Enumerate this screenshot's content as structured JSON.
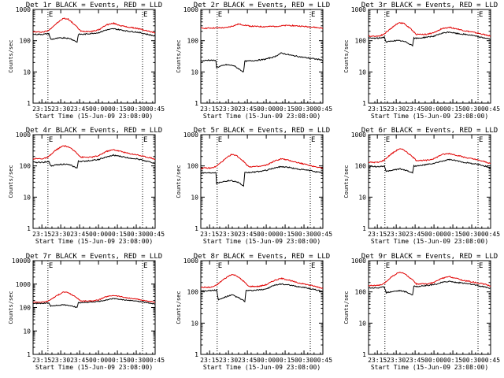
{
  "figure": {
    "xlabel": "Start Time (15-Jun-09 23:08:00)",
    "ylabel": "Counts/sec",
    "x_ticks": [
      "23:15",
      "23:30",
      "23:45",
      "00:00",
      "00:15",
      "00:30",
      "00:45"
    ],
    "y_ticks": [
      "1",
      "10",
      "100",
      "1000",
      "10000"
    ],
    "marker_label": "E",
    "colors": {
      "events": "#000000",
      "lld": "#e00000",
      "axes": "#000000",
      "background": "#ffffff"
    }
  },
  "chart_data": [
    {
      "type": "line",
      "title": "Det 1r BLACK = Events, RED = LLD",
      "ymax": 1000,
      "series": [
        {
          "name": "LLD",
          "color": "#e00000",
          "x": [
            0,
            8,
            12,
            18,
            24,
            28,
            34,
            38,
            46,
            52,
            58,
            64,
            70,
            76,
            82,
            88,
            94,
            97
          ],
          "values": [
            190,
            190,
            210,
            340,
            520,
            490,
            300,
            200,
            200,
            220,
            320,
            360,
            300,
            270,
            250,
            220,
            190,
            180
          ]
        },
        {
          "name": "Events",
          "color": "#000000",
          "x": [
            0,
            8,
            12.5,
            14,
            20,
            25,
            30,
            35,
            36,
            40,
            46,
            52,
            58,
            64,
            70,
            76,
            82,
            88,
            94,
            97
          ],
          "values": [
            160,
            160,
            170,
            110,
            120,
            125,
            115,
            90,
            160,
            160,
            170,
            180,
            220,
            240,
            220,
            200,
            190,
            170,
            150,
            140
          ]
        }
      ],
      "markers": [
        11.8,
        87
      ]
    },
    {
      "type": "line",
      "title": "Det 2r BLACK = Events, RED = LLD",
      "ymax": 1000,
      "series": [
        {
          "name": "LLD",
          "color": "#e00000",
          "x": [
            0,
            10,
            20,
            26,
            30,
            40,
            50,
            60,
            70,
            80,
            90,
            97
          ],
          "values": [
            250,
            255,
            260,
            300,
            340,
            290,
            280,
            290,
            310,
            290,
            270,
            250
          ]
        },
        {
          "name": "Events",
          "color": "#000000",
          "x": [
            0,
            6,
            12,
            12.5,
            20,
            26,
            34,
            35,
            42,
            50,
            58,
            64,
            72,
            80,
            88,
            97
          ],
          "values": [
            22,
            24,
            23,
            14,
            17,
            16,
            10,
            22,
            23,
            25,
            30,
            40,
            34,
            30,
            27,
            24
          ]
        }
      ],
      "markers": [
        13,
        87
      ]
    },
    {
      "type": "line",
      "title": "Det 3r BLACK = Events, RED = LLD",
      "ymax": 1000,
      "series": [
        {
          "name": "LLD",
          "color": "#e00000",
          "x": [
            0,
            8,
            12,
            18,
            24,
            28,
            34,
            38,
            46,
            52,
            58,
            64,
            70,
            76,
            82,
            88,
            94,
            97
          ],
          "values": [
            140,
            140,
            160,
            250,
            380,
            360,
            230,
            160,
            160,
            180,
            240,
            270,
            240,
            210,
            190,
            170,
            150,
            140
          ]
        },
        {
          "name": "Events",
          "color": "#000000",
          "x": [
            0,
            8,
            12.5,
            14,
            20,
            25,
            30,
            35,
            36,
            40,
            46,
            52,
            58,
            64,
            70,
            76,
            82,
            88,
            94,
            97
          ],
          "values": [
            120,
            120,
            130,
            90,
            100,
            100,
            90,
            70,
            120,
            120,
            130,
            140,
            170,
            190,
            170,
            160,
            150,
            130,
            120,
            110
          ]
        }
      ],
      "markers": [
        13,
        87
      ]
    },
    {
      "type": "line",
      "title": "Det 4r BLACK = Events, RED = LLD",
      "ymax": 1000,
      "series": [
        {
          "name": "LLD",
          "color": "#e00000",
          "x": [
            0,
            8,
            12,
            18,
            24,
            28,
            34,
            38,
            46,
            52,
            58,
            64,
            70,
            76,
            82,
            88,
            94,
            97
          ],
          "values": [
            170,
            170,
            190,
            320,
            440,
            410,
            280,
            190,
            190,
            210,
            290,
            330,
            290,
            250,
            230,
            200,
            180,
            160
          ]
        },
        {
          "name": "Events",
          "color": "#000000",
          "x": [
            0,
            8,
            12.5,
            14,
            20,
            25,
            30,
            35,
            36,
            40,
            46,
            52,
            58,
            64,
            70,
            76,
            82,
            88,
            94,
            97
          ],
          "values": [
            130,
            130,
            140,
            100,
            110,
            115,
            105,
            85,
            140,
            140,
            150,
            160,
            190,
            220,
            200,
            180,
            170,
            150,
            130,
            120
          ]
        }
      ],
      "markers": [
        11.8,
        87
      ]
    },
    {
      "type": "line",
      "title": "Det 5r BLACK = Events, RED = LLD",
      "ymax": 1000,
      "series": [
        {
          "name": "LLD",
          "color": "#e00000",
          "x": [
            0,
            8,
            12,
            18,
            24,
            28,
            34,
            38,
            46,
            52,
            58,
            64,
            70,
            76,
            82,
            88,
            94,
            97
          ],
          "values": [
            85,
            85,
            95,
            150,
            230,
            220,
            140,
            95,
            95,
            105,
            140,
            170,
            150,
            130,
            115,
            100,
            90,
            85
          ]
        },
        {
          "name": "Events",
          "color": "#000000",
          "x": [
            0,
            6,
            12,
            12.5,
            18,
            24,
            30,
            34,
            35,
            40,
            46,
            52,
            58,
            64,
            70,
            76,
            82,
            88,
            94,
            97
          ],
          "values": [
            60,
            60,
            62,
            28,
            32,
            34,
            30,
            22,
            60,
            62,
            66,
            72,
            85,
            95,
            90,
            80,
            75,
            70,
            62,
            58
          ]
        }
      ],
      "markers": [
        13,
        87
      ]
    },
    {
      "type": "line",
      "title": "Det 6r BLACK = Events, RED = LLD",
      "ymax": 1000,
      "series": [
        {
          "name": "LLD",
          "color": "#e00000",
          "x": [
            0,
            8,
            12,
            18,
            24,
            28,
            34,
            38,
            46,
            52,
            58,
            64,
            70,
            76,
            82,
            88,
            94,
            97
          ],
          "values": [
            130,
            130,
            150,
            240,
            350,
            330,
            210,
            150,
            150,
            170,
            230,
            250,
            220,
            190,
            170,
            150,
            130,
            120
          ]
        },
        {
          "name": "Events",
          "color": "#000000",
          "x": [
            0,
            8,
            12.5,
            14,
            20,
            25,
            30,
            35,
            36,
            40,
            46,
            52,
            58,
            64,
            70,
            76,
            82,
            88,
            94,
            97
          ],
          "values": [
            95,
            95,
            100,
            65,
            75,
            80,
            72,
            60,
            100,
            100,
            110,
            120,
            140,
            160,
            145,
            130,
            120,
            110,
            95,
            85
          ]
        }
      ],
      "markers": [
        13,
        87
      ]
    },
    {
      "type": "line",
      "title": "Det 7r BLACK = Events, RED = LLD",
      "ymax": 10000,
      "series": [
        {
          "name": "LLD",
          "color": "#e00000",
          "x": [
            0,
            8,
            12,
            18,
            24,
            28,
            34,
            38,
            46,
            52,
            58,
            64,
            70,
            76,
            82,
            88,
            94,
            97
          ],
          "values": [
            170,
            170,
            190,
            300,
            460,
            430,
            280,
            190,
            190,
            210,
            290,
            330,
            290,
            250,
            230,
            200,
            180,
            160
          ]
        },
        {
          "name": "Events",
          "color": "#000000",
          "x": [
            0,
            8,
            12.5,
            14,
            20,
            25,
            30,
            35,
            36,
            40,
            46,
            52,
            58,
            64,
            70,
            76,
            82,
            88,
            94,
            97
          ],
          "values": [
            150,
            150,
            160,
            115,
            125,
            130,
            120,
            100,
            160,
            160,
            170,
            180,
            210,
            240,
            220,
            200,
            190,
            170,
            150,
            140
          ]
        }
      ],
      "markers": [
        11.8,
        87
      ]
    },
    {
      "type": "line",
      "title": "Det 8r BLACK = Events, RED = LLD",
      "ymax": 1000,
      "series": [
        {
          "name": "LLD",
          "color": "#e00000",
          "x": [
            0,
            8,
            12,
            18,
            24,
            28,
            34,
            38,
            46,
            52,
            58,
            64,
            70,
            76,
            82,
            88,
            94,
            97
          ],
          "values": [
            140,
            140,
            160,
            250,
            360,
            340,
            220,
            150,
            150,
            170,
            230,
            270,
            240,
            200,
            180,
            160,
            140,
            130
          ]
        },
        {
          "name": "Events",
          "color": "#000000",
          "x": [
            0,
            8,
            12.5,
            14,
            20,
            25,
            30,
            35,
            36,
            40,
            46,
            52,
            58,
            64,
            70,
            76,
            82,
            88,
            94,
            97
          ],
          "values": [
            110,
            110,
            115,
            55,
            70,
            80,
            65,
            50,
            110,
            110,
            115,
            125,
            160,
            180,
            165,
            150,
            140,
            125,
            110,
            100
          ]
        }
      ],
      "markers": [
        13,
        87
      ]
    },
    {
      "type": "line",
      "title": "Det 9r BLACK = Events, RED = LLD",
      "ymax": 1000,
      "series": [
        {
          "name": "LLD",
          "color": "#e00000",
          "x": [
            0,
            8,
            12,
            18,
            24,
            28,
            34,
            38,
            46,
            52,
            58,
            64,
            70,
            76,
            82,
            88,
            94,
            97
          ],
          "values": [
            160,
            160,
            180,
            300,
            420,
            400,
            260,
            180,
            180,
            200,
            270,
            310,
            270,
            230,
            210,
            190,
            170,
            150
          ]
        },
        {
          "name": "Events",
          "color": "#000000",
          "x": [
            0,
            8,
            12.5,
            14,
            20,
            25,
            30,
            35,
            36,
            40,
            46,
            52,
            58,
            64,
            70,
            76,
            82,
            88,
            94,
            97
          ],
          "values": [
            135,
            135,
            145,
            95,
            105,
            110,
            100,
            80,
            150,
            150,
            160,
            170,
            200,
            220,
            200,
            190,
            175,
            155,
            140,
            130
          ]
        }
      ],
      "markers": [
        13,
        87
      ]
    }
  ]
}
